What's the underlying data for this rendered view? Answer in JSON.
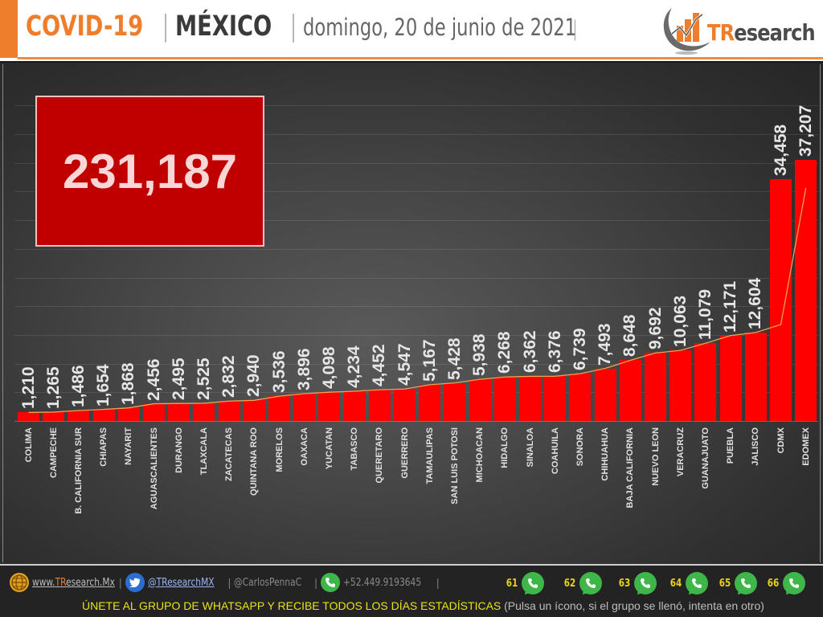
{
  "header": {
    "title_main": "COVID-19",
    "separator": "|",
    "country": "MÉXICO",
    "date": "domingo, 20 de junio de 2021",
    "trailing_separator": "|",
    "logo_text_accent": "TR",
    "logo_text_rest": "esearch"
  },
  "total": {
    "value": "231,187"
  },
  "colors": {
    "accent_orange": "#ee7d2c",
    "bar_red": "#ff0000",
    "total_box_red": "#c00000",
    "trend_line": "#f0a050",
    "footer_yellow": "#e8e21a",
    "whatsapp_green": "#3fb649"
  },
  "chart_data": {
    "type": "bar",
    "title": "COVID-19 | MÉXICO | domingo, 20 de junio de 2021",
    "xlabel": "",
    "ylabel": "",
    "ylim": [
      0,
      42000
    ],
    "grid": true,
    "legend": "none",
    "trendline": true,
    "total_annotation": "231,187",
    "categories": [
      "COLIMA",
      "CAMPECHE",
      "B. CALIFORNIA SUR",
      "CHIAPAS",
      "NAYARIT",
      "AGUASCALIENTES",
      "DURANGO",
      "TLAXCALA",
      "ZACATECAS",
      "QUINTANA ROO",
      "MORELOS",
      "OAXACA",
      "YUCATAN",
      "TABASCO",
      "QUERETARO",
      "GUERRERO",
      "TAMAULIPAS",
      "SAN LUIS POTOSI",
      "MICHOACAN",
      "HIDALGO",
      "SINALOA",
      "COAHUILA",
      "SONORA",
      "CHIHUAHUA",
      "BAJA CALIFORNIA",
      "NUEVO LEON",
      "VERACRUZ",
      "GUANAJUATO",
      "PUEBLA",
      "JALISCO",
      "CDMX",
      "EDOMEX"
    ],
    "values": [
      1210,
      1265,
      1486,
      1654,
      1868,
      2456,
      2495,
      2525,
      2832,
      2940,
      3536,
      3896,
      4098,
      4234,
      4452,
      4547,
      5167,
      5428,
      5938,
      6268,
      6362,
      6376,
      6739,
      7493,
      8648,
      9692,
      10063,
      11079,
      12171,
      12604,
      34458,
      37207
    ],
    "value_labels": [
      "1,210",
      "1,265",
      "1,486",
      "1,654",
      "1,868",
      "2,456",
      "2,495",
      "2,525",
      "2,832",
      "2,940",
      "3,536",
      "3,896",
      "4,098",
      "4,234",
      "4,452",
      "4,547",
      "5,167",
      "5,428",
      "5,938",
      "6,268",
      "6,362",
      "6,376",
      "6,739",
      "7,493",
      "8,648",
      "9,692",
      "10,063",
      "11,079",
      "12,171",
      "12,604",
      "34,458",
      "37,207"
    ]
  },
  "footer": {
    "website": "www.TResearch.Mx",
    "website_accent": "TR",
    "website_prefix": "www.",
    "website_suffix": "esearch.Mx",
    "twitter": "@TResearchMX",
    "personal": "@CarlosPennaC",
    "phone": "+52.449.9193645",
    "pipe": "|",
    "whatsapp_groups": [
      {
        "number": "61"
      },
      {
        "number": "62"
      },
      {
        "number": "63"
      },
      {
        "number": "64"
      },
      {
        "number": "65"
      },
      {
        "number": "66"
      }
    ],
    "cta_main": "ÚNETE AL GRUPO DE WHATSAPP Y RECIBE TODOS LOS DÍAS ESTADÍSTICAS",
    "cta_note": "(Pulsa un ícono, si el grupo se llenó, intenta en otro)"
  }
}
